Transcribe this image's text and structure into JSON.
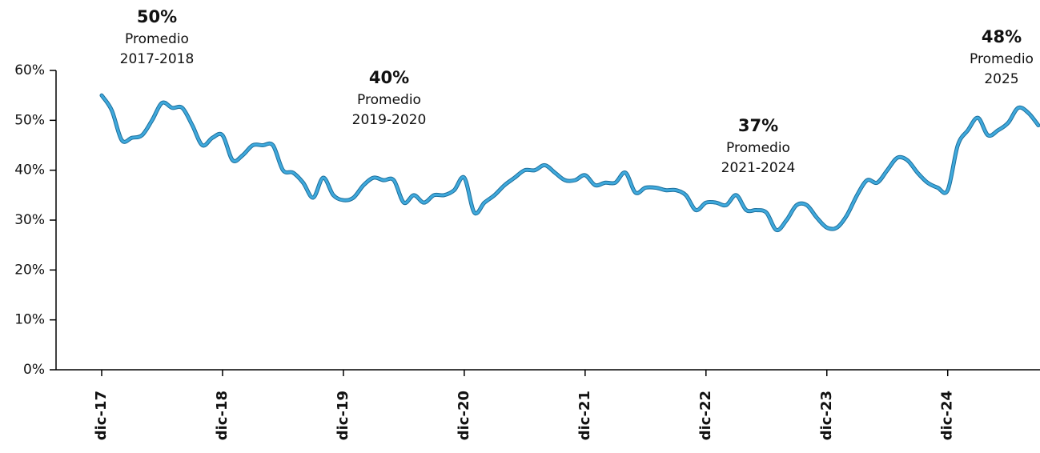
{
  "chart_data": {
    "type": "line",
    "categories": [
      "dic-17",
      null,
      null,
      null,
      null,
      null,
      null,
      null,
      null,
      null,
      null,
      null,
      "dic-18",
      null,
      null,
      null,
      null,
      null,
      null,
      null,
      null,
      null,
      null,
      null,
      "dic-19",
      null,
      null,
      null,
      null,
      null,
      null,
      null,
      null,
      null,
      null,
      null,
      "dic-20",
      null,
      null,
      null,
      null,
      null,
      null,
      null,
      null,
      null,
      null,
      null,
      "dic-21",
      null,
      null,
      null,
      null,
      null,
      null,
      null,
      null,
      null,
      null,
      null,
      "dic-22",
      null,
      null,
      null,
      null,
      null,
      null,
      null,
      null,
      null,
      null,
      null,
      "dic-23",
      null,
      null,
      null,
      null,
      null,
      null,
      null,
      null,
      null,
      null,
      null,
      "dic-24",
      null,
      null,
      null,
      null,
      null,
      null,
      null,
      null,
      null
    ],
    "values": [
      55,
      52,
      46,
      46.5,
      47,
      50,
      53.5,
      52.5,
      52.5,
      49,
      45,
      46.5,
      47,
      42,
      43,
      45,
      45,
      45,
      40,
      39.5,
      37.5,
      34.5,
      38.5,
      35,
      34,
      34.5,
      37,
      38.5,
      38,
      38,
      33.5,
      35,
      33.5,
      35,
      35,
      36,
      38.5,
      31.5,
      33.5,
      35,
      37,
      38.5,
      40,
      40,
      41,
      39.5,
      38,
      38,
      39,
      37,
      37.5,
      37.5,
      39.5,
      35.5,
      36.5,
      36.5,
      36,
      36,
      35,
      32,
      33.5,
      33.5,
      33,
      35,
      32,
      32,
      31.5,
      28,
      30,
      33,
      33,
      30.5,
      28.5,
      28.5,
      31,
      35,
      38,
      37.5,
      40,
      42.5,
      42,
      39.5,
      37.5,
      36.5,
      36,
      45,
      48,
      50.5,
      47,
      48,
      49.5,
      52.5,
      51.5,
      49
    ],
    "color": "#3fa9dc",
    "ylim": [
      0,
      60
    ],
    "yticks": [
      {
        "value": 0,
        "label": "0%"
      },
      {
        "value": 10,
        "label": "10%"
      },
      {
        "value": 20,
        "label": "20%"
      },
      {
        "value": 30,
        "label": "30%"
      },
      {
        "value": 40,
        "label": "40%"
      },
      {
        "value": 50,
        "label": "50%"
      },
      {
        "value": 60,
        "label": "60%"
      }
    ],
    "annotations": [
      {
        "value": "50%",
        "text": "Promedio",
        "period": "2017-2018"
      },
      {
        "value": "40%",
        "text": "Promedio",
        "period": "2019-2020"
      },
      {
        "value": "37%",
        "text": "Promedio",
        "period": "2021-2024"
      },
      {
        "value": "48%",
        "text": "Promedio",
        "period": "2025"
      }
    ]
  }
}
